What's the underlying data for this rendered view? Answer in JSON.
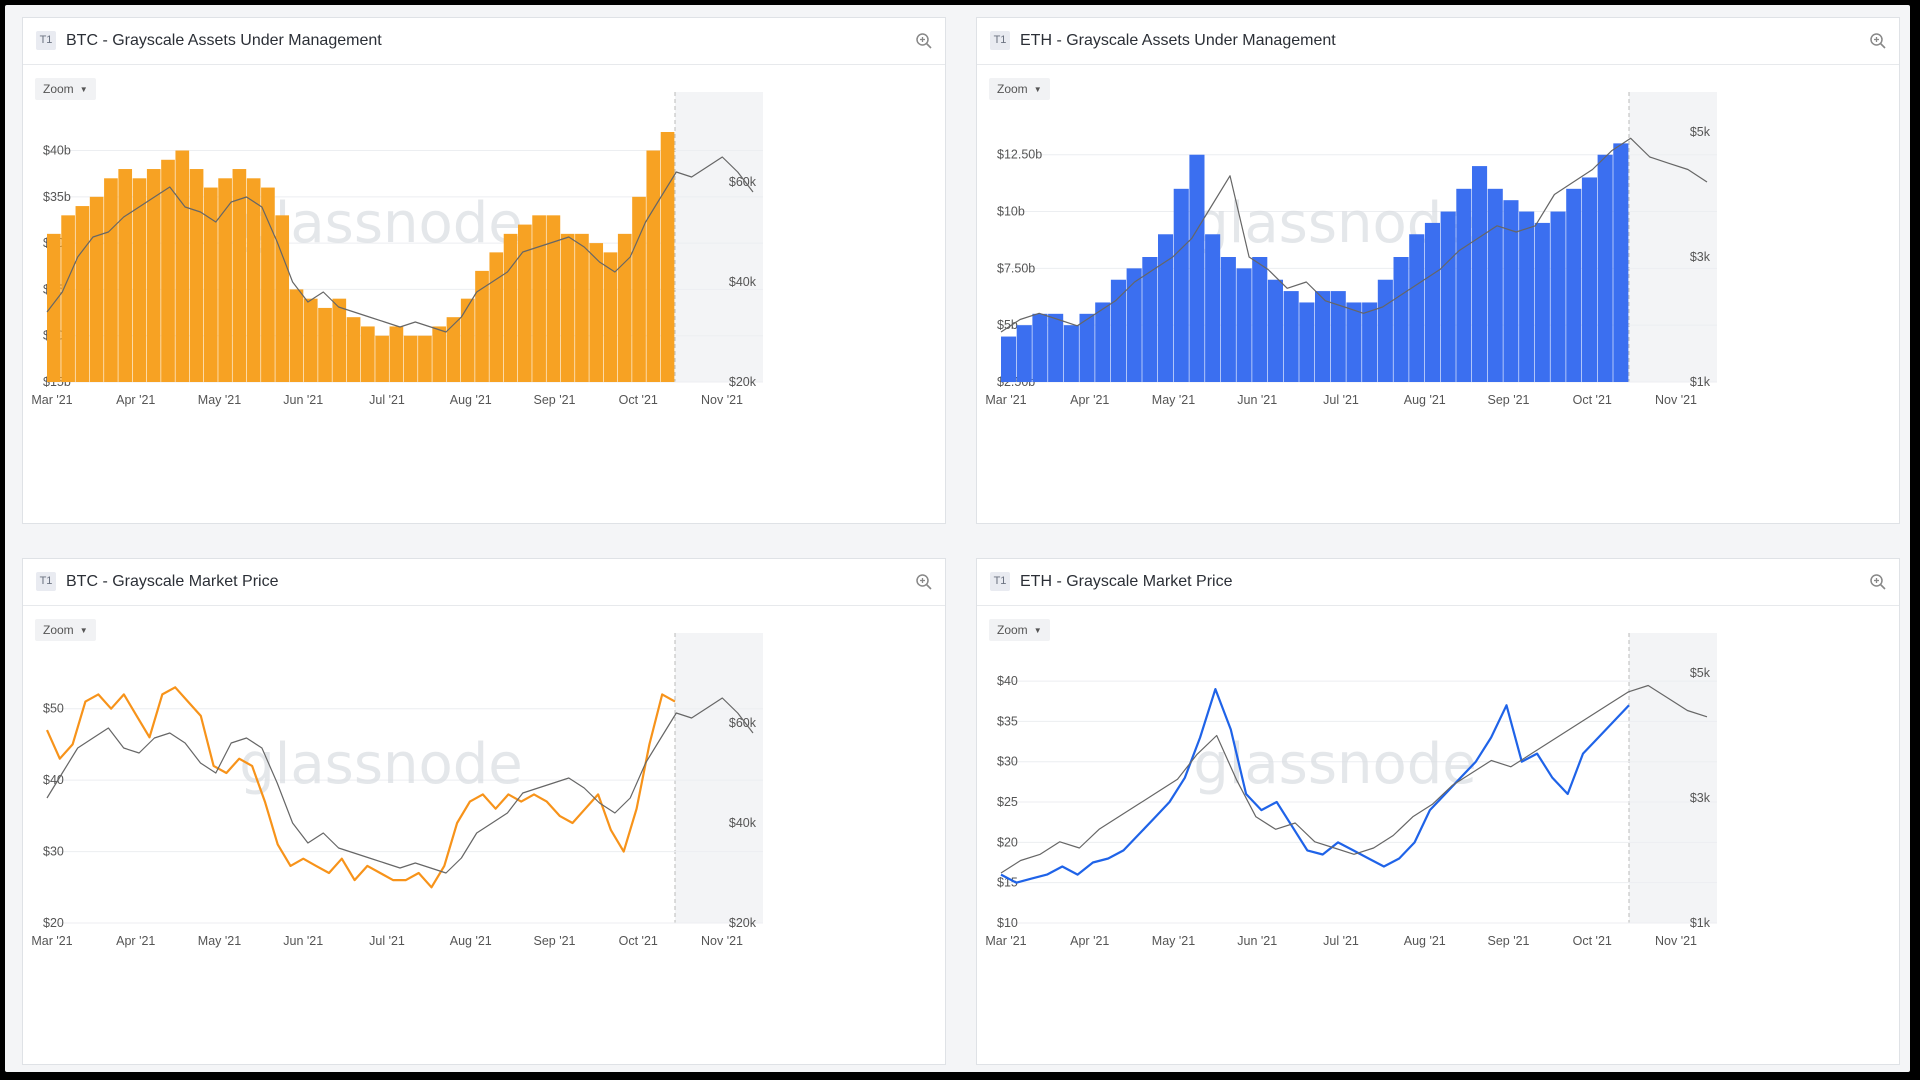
{
  "watermark": "glassnode",
  "zoom_label": "Zoom",
  "tier_badge": "T1",
  "colors": {
    "btc": "#f7a223",
    "btc_line": "#f7931a",
    "eth": "#3b6ff0",
    "eth_line": "#1f63e8",
    "price": "#666666"
  },
  "cards": [
    {
      "title": "BTC - Grayscale Assets Under Management"
    },
    {
      "title": "ETH - Grayscale Assets Under Management"
    },
    {
      "title": "BTC - Grayscale Market Price"
    },
    {
      "title": "ETH - Grayscale Market Price"
    }
  ],
  "chart_data": [
    {
      "type": "bar",
      "title": "BTC - Grayscale Assets Under Management",
      "x_ticks": [
        "Mar '21",
        "Apr '21",
        "May '21",
        "Jun '21",
        "Jul '21",
        "Aug '21",
        "Sep '21",
        "Oct '21",
        "Nov '21"
      ],
      "y_ticks": [
        "$15b",
        "$20b",
        "$25b",
        "$30b",
        "$35b",
        "$40b"
      ],
      "ylim": [
        15,
        42
      ],
      "y2_ticks": [
        "$20k",
        "$40k",
        "$60k"
      ],
      "y2lim": [
        20000,
        70000
      ],
      "series": [
        {
          "type": "bar",
          "color": "#f7a223",
          "values": [
            31,
            33,
            34,
            35,
            37,
            38,
            37,
            38,
            39,
            40,
            38,
            36,
            37,
            38,
            37,
            36,
            33,
            25,
            24,
            23,
            24,
            22,
            21,
            20,
            21,
            20,
            20,
            21,
            22,
            24,
            27,
            29,
            31,
            32,
            33,
            33,
            31,
            31,
            30,
            29,
            31,
            35,
            40,
            42
          ]
        },
        {
          "type": "line",
          "color": "#666666",
          "values": [
            34000,
            38000,
            45000,
            49000,
            50000,
            53000,
            55000,
            57000,
            59000,
            55000,
            54000,
            52000,
            56000,
            57000,
            55000,
            48000,
            40000,
            36000,
            38000,
            35000,
            34000,
            33000,
            32000,
            31000,
            32000,
            31000,
            30000,
            33000,
            38000,
            40000,
            42000,
            46000,
            47000,
            48000,
            49000,
            47000,
            44000,
            42000,
            45000,
            52000,
            57000,
            62000,
            61000,
            63000,
            65000,
            62000,
            58000
          ]
        }
      ]
    },
    {
      "type": "bar",
      "title": "ETH - Grayscale Assets Under Management",
      "x_ticks": [
        "Mar '21",
        "Apr '21",
        "May '21",
        "Jun '21",
        "Jul '21",
        "Aug '21",
        "Sep '21",
        "Oct '21",
        "Nov '21"
      ],
      "y_ticks": [
        "$2.50b",
        "$5b",
        "$7.50b",
        "$10b",
        "$12.50b"
      ],
      "ylim": [
        2.5,
        13.5
      ],
      "y2_ticks": [
        "$1k",
        "$3k",
        "$5k"
      ],
      "y2lim": [
        1000,
        5000
      ],
      "series": [
        {
          "type": "bar",
          "color": "#3b6ff0",
          "values": [
            4.5,
            5.0,
            5.5,
            5.5,
            5.0,
            5.5,
            6.0,
            7.0,
            7.5,
            8.0,
            9.0,
            11.0,
            12.5,
            9.0,
            8.0,
            7.5,
            8.0,
            7.0,
            6.5,
            6.0,
            6.5,
            6.5,
            6.0,
            6.0,
            7.0,
            8.0,
            9.0,
            9.5,
            10.0,
            11.0,
            12.0,
            11.0,
            10.5,
            10.0,
            9.5,
            10.0,
            11.0,
            11.5,
            12.5,
            13.0
          ]
        },
        {
          "type": "line",
          "color": "#666666",
          "values": [
            1800,
            2000,
            2100,
            2000,
            1900,
            2100,
            2300,
            2600,
            2800,
            3000,
            3300,
            3800,
            4300,
            3000,
            2800,
            2500,
            2600,
            2300,
            2200,
            2100,
            2200,
            2400,
            2600,
            2800,
            3100,
            3300,
            3500,
            3400,
            3500,
            4000,
            4200,
            4400,
            4700,
            4900,
            4600,
            4500,
            4400,
            4200
          ]
        }
      ]
    },
    {
      "type": "line",
      "title": "BTC - Grayscale Market Price",
      "x_ticks": [
        "Mar '21",
        "Apr '21",
        "May '21",
        "Jun '21",
        "Jul '21",
        "Aug '21",
        "Sep '21",
        "Oct '21",
        "Nov '21"
      ],
      "y_ticks": [
        "$20",
        "$30",
        "$40",
        "$50"
      ],
      "ylim": [
        20,
        55
      ],
      "y2_ticks": [
        "$20k",
        "$40k",
        "$60k"
      ],
      "y2lim": [
        20000,
        70000
      ],
      "series": [
        {
          "type": "line",
          "color": "#f7931a",
          "values": [
            47,
            43,
            45,
            51,
            52,
            50,
            52,
            49,
            46,
            52,
            53,
            51,
            49,
            42,
            41,
            43,
            42,
            37,
            31,
            28,
            29,
            28,
            27,
            29,
            26,
            28,
            27,
            26,
            26,
            27,
            25,
            28,
            34,
            37,
            38,
            36,
            38,
            37,
            38,
            37,
            35,
            34,
            36,
            38,
            33,
            30,
            36,
            45,
            52,
            51
          ]
        },
        {
          "type": "line",
          "color": "#666666",
          "values": [
            45000,
            50000,
            55000,
            57000,
            59000,
            55000,
            54000,
            57000,
            58000,
            56000,
            52000,
            50000,
            56000,
            57000,
            55000,
            48000,
            40000,
            36000,
            38000,
            35000,
            34000,
            33000,
            32000,
            31000,
            32000,
            31000,
            30000,
            33000,
            38000,
            40000,
            42000,
            46000,
            47000,
            48000,
            49000,
            47000,
            44000,
            42000,
            45000,
            52000,
            57000,
            62000,
            61000,
            63000,
            65000,
            62000,
            58000
          ]
        }
      ]
    },
    {
      "type": "line",
      "title": "ETH - Grayscale Market Price",
      "x_ticks": [
        "Mar '21",
        "Apr '21",
        "May '21",
        "Jun '21",
        "Jul '21",
        "Aug '21",
        "Sep '21",
        "Oct '21",
        "Nov '21"
      ],
      "y_ticks": [
        "$10",
        "$15",
        "$20",
        "$25",
        "$30",
        "$35",
        "$40"
      ],
      "ylim": [
        10,
        41
      ],
      "y2_ticks": [
        "$1k",
        "$3k",
        "$5k"
      ],
      "y2lim": [
        1000,
        5000
      ],
      "series": [
        {
          "type": "line",
          "color": "#1f63e8",
          "values": [
            16,
            15,
            15.5,
            16,
            17,
            16,
            17.5,
            18,
            19,
            21,
            23,
            25,
            28,
            33,
            39,
            34,
            26,
            24,
            25,
            22,
            19,
            18.5,
            20,
            19,
            18,
            17,
            18,
            20,
            24,
            26,
            28,
            30,
            33,
            37,
            30,
            31,
            28,
            26,
            31,
            33,
            35,
            37
          ]
        },
        {
          "type": "line",
          "color": "#666666",
          "values": [
            1800,
            2000,
            2100,
            2300,
            2200,
            2500,
            2700,
            2900,
            3100,
            3300,
            3700,
            4000,
            3300,
            2700,
            2500,
            2600,
            2300,
            2200,
            2100,
            2200,
            2400,
            2700,
            2900,
            3200,
            3400,
            3600,
            3500,
            3700,
            3900,
            4100,
            4300,
            4500,
            4700,
            4800,
            4600,
            4400,
            4300
          ]
        }
      ]
    }
  ]
}
